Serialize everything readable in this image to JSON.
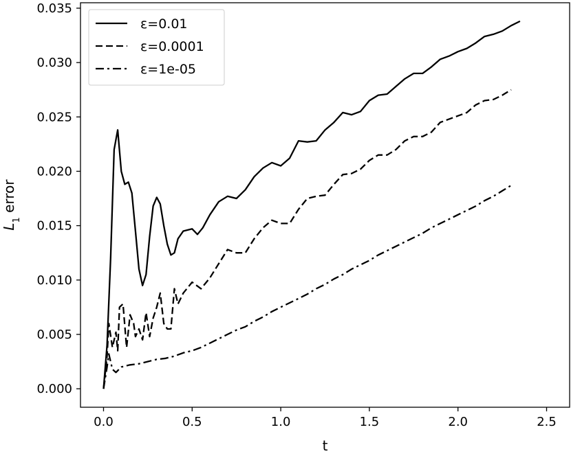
{
  "chart_data": {
    "type": "line",
    "title": "",
    "xlabel": "t",
    "ylabel": "L",
    "ylabel_subscript": "1",
    "ylabel_suffix": " error",
    "xlim": [
      -0.13,
      2.63
    ],
    "ylim": [
      -0.0017,
      0.0355
    ],
    "xticks": [
      0.0,
      0.5,
      1.0,
      1.5,
      2.0,
      2.5
    ],
    "xtick_labels": [
      "0.0",
      "0.5",
      "1.0",
      "1.5",
      "2.0",
      "2.5"
    ],
    "yticks": [
      0.0,
      0.005,
      0.01,
      0.015,
      0.02,
      0.025,
      0.03,
      0.035
    ],
    "ytick_labels": [
      "0.000",
      "0.005",
      "0.010",
      "0.015",
      "0.020",
      "0.025",
      "0.030",
      "0.035"
    ],
    "grid": false,
    "legend_position": "top-left",
    "series": [
      {
        "name": "ε=0.01",
        "style": "solid",
        "color": "#000000",
        "points": [
          [
            0.0,
            0.0
          ],
          [
            0.02,
            0.004
          ],
          [
            0.04,
            0.012
          ],
          [
            0.06,
            0.022
          ],
          [
            0.08,
            0.0238
          ],
          [
            0.1,
            0.02
          ],
          [
            0.12,
            0.0188
          ],
          [
            0.14,
            0.019
          ],
          [
            0.16,
            0.018
          ],
          [
            0.18,
            0.0145
          ],
          [
            0.2,
            0.011
          ],
          [
            0.22,
            0.0095
          ],
          [
            0.24,
            0.0105
          ],
          [
            0.26,
            0.014
          ],
          [
            0.28,
            0.0168
          ],
          [
            0.3,
            0.0176
          ],
          [
            0.32,
            0.017
          ],
          [
            0.34,
            0.015
          ],
          [
            0.36,
            0.0133
          ],
          [
            0.38,
            0.0123
          ],
          [
            0.4,
            0.0125
          ],
          [
            0.42,
            0.0138
          ],
          [
            0.45,
            0.0145
          ],
          [
            0.5,
            0.0147
          ],
          [
            0.53,
            0.0142
          ],
          [
            0.56,
            0.0148
          ],
          [
            0.6,
            0.016
          ],
          [
            0.65,
            0.0172
          ],
          [
            0.7,
            0.0177
          ],
          [
            0.75,
            0.0175
          ],
          [
            0.8,
            0.0183
          ],
          [
            0.85,
            0.0195
          ],
          [
            0.9,
            0.0203
          ],
          [
            0.95,
            0.0208
          ],
          [
            1.0,
            0.0205
          ],
          [
            1.05,
            0.0212
          ],
          [
            1.1,
            0.0228
          ],
          [
            1.15,
            0.0227
          ],
          [
            1.2,
            0.0228
          ],
          [
            1.25,
            0.0238
          ],
          [
            1.3,
            0.0245
          ],
          [
            1.35,
            0.0254
          ],
          [
            1.4,
            0.0252
          ],
          [
            1.45,
            0.0255
          ],
          [
            1.5,
            0.0265
          ],
          [
            1.55,
            0.027
          ],
          [
            1.6,
            0.0271
          ],
          [
            1.65,
            0.0278
          ],
          [
            1.7,
            0.0285
          ],
          [
            1.75,
            0.029
          ],
          [
            1.8,
            0.029
          ],
          [
            1.85,
            0.0296
          ],
          [
            1.9,
            0.0303
          ],
          [
            1.95,
            0.0306
          ],
          [
            2.0,
            0.031
          ],
          [
            2.05,
            0.0313
          ],
          [
            2.1,
            0.0318
          ],
          [
            2.15,
            0.0324
          ],
          [
            2.2,
            0.0326
          ],
          [
            2.25,
            0.0329
          ],
          [
            2.3,
            0.0334
          ],
          [
            2.35,
            0.0338
          ]
        ]
      },
      {
        "name": "ε=0.0001",
        "style": "dashed",
        "color": "#000000",
        "points": [
          [
            0.0,
            0.0
          ],
          [
            0.02,
            0.003
          ],
          [
            0.03,
            0.006
          ],
          [
            0.05,
            0.0038
          ],
          [
            0.07,
            0.0052
          ],
          [
            0.08,
            0.0035
          ],
          [
            0.09,
            0.0075
          ],
          [
            0.11,
            0.0078
          ],
          [
            0.13,
            0.0038
          ],
          [
            0.15,
            0.0068
          ],
          [
            0.17,
            0.006
          ],
          [
            0.18,
            0.0048
          ],
          [
            0.2,
            0.0055
          ],
          [
            0.22,
            0.0045
          ],
          [
            0.24,
            0.007
          ],
          [
            0.26,
            0.0048
          ],
          [
            0.28,
            0.0065
          ],
          [
            0.3,
            0.0075
          ],
          [
            0.32,
            0.0088
          ],
          [
            0.34,
            0.006
          ],
          [
            0.36,
            0.0055
          ],
          [
            0.38,
            0.0055
          ],
          [
            0.4,
            0.0092
          ],
          [
            0.42,
            0.0078
          ],
          [
            0.45,
            0.0088
          ],
          [
            0.5,
            0.0098
          ],
          [
            0.55,
            0.0092
          ],
          [
            0.6,
            0.0102
          ],
          [
            0.65,
            0.0115
          ],
          [
            0.7,
            0.0128
          ],
          [
            0.75,
            0.0125
          ],
          [
            0.8,
            0.0125
          ],
          [
            0.85,
            0.0138
          ],
          [
            0.9,
            0.0148
          ],
          [
            0.95,
            0.0155
          ],
          [
            1.0,
            0.0152
          ],
          [
            1.05,
            0.0152
          ],
          [
            1.1,
            0.0165
          ],
          [
            1.15,
            0.0175
          ],
          [
            1.2,
            0.0177
          ],
          [
            1.25,
            0.0178
          ],
          [
            1.3,
            0.0188
          ],
          [
            1.35,
            0.0197
          ],
          [
            1.4,
            0.0198
          ],
          [
            1.45,
            0.0202
          ],
          [
            1.5,
            0.021
          ],
          [
            1.55,
            0.0215
          ],
          [
            1.6,
            0.0215
          ],
          [
            1.65,
            0.022
          ],
          [
            1.7,
            0.0228
          ],
          [
            1.75,
            0.0232
          ],
          [
            1.8,
            0.0232
          ],
          [
            1.85,
            0.0236
          ],
          [
            1.9,
            0.0245
          ],
          [
            1.95,
            0.0248
          ],
          [
            2.0,
            0.0251
          ],
          [
            2.05,
            0.0254
          ],
          [
            2.1,
            0.0261
          ],
          [
            2.15,
            0.0265
          ],
          [
            2.2,
            0.0266
          ],
          [
            2.25,
            0.027
          ],
          [
            2.3,
            0.0275
          ]
        ]
      },
      {
        "name": "ε=1e-05",
        "style": "dashdot",
        "color": "#000000",
        "points": [
          [
            0.0,
            0.0
          ],
          [
            0.02,
            0.002
          ],
          [
            0.03,
            0.0032
          ],
          [
            0.05,
            0.0018
          ],
          [
            0.07,
            0.0015
          ],
          [
            0.1,
            0.002
          ],
          [
            0.15,
            0.0022
          ],
          [
            0.2,
            0.0023
          ],
          [
            0.25,
            0.0025
          ],
          [
            0.3,
            0.0027
          ],
          [
            0.35,
            0.0028
          ],
          [
            0.4,
            0.003
          ],
          [
            0.45,
            0.0033
          ],
          [
            0.5,
            0.0035
          ],
          [
            0.55,
            0.0038
          ],
          [
            0.6,
            0.0042
          ],
          [
            0.65,
            0.0046
          ],
          [
            0.7,
            0.005
          ],
          [
            0.75,
            0.0054
          ],
          [
            0.8,
            0.0057
          ],
          [
            0.85,
            0.0062
          ],
          [
            0.9,
            0.0066
          ],
          [
            0.95,
            0.0071
          ],
          [
            1.0,
            0.0075
          ],
          [
            1.05,
            0.0079
          ],
          [
            1.1,
            0.0083
          ],
          [
            1.15,
            0.0087
          ],
          [
            1.2,
            0.0092
          ],
          [
            1.25,
            0.0096
          ],
          [
            1.3,
            0.0101
          ],
          [
            1.35,
            0.0105
          ],
          [
            1.4,
            0.011
          ],
          [
            1.45,
            0.0114
          ],
          [
            1.5,
            0.0118
          ],
          [
            1.55,
            0.0123
          ],
          [
            1.6,
            0.0127
          ],
          [
            1.65,
            0.0131
          ],
          [
            1.7,
            0.0135
          ],
          [
            1.75,
            0.0139
          ],
          [
            1.8,
            0.0143
          ],
          [
            1.85,
            0.0148
          ],
          [
            1.9,
            0.0152
          ],
          [
            1.95,
            0.0156
          ],
          [
            2.0,
            0.016
          ],
          [
            2.05,
            0.0164
          ],
          [
            2.1,
            0.0168
          ],
          [
            2.15,
            0.0173
          ],
          [
            2.2,
            0.0177
          ],
          [
            2.25,
            0.0182
          ],
          [
            2.3,
            0.0187
          ]
        ]
      }
    ]
  }
}
